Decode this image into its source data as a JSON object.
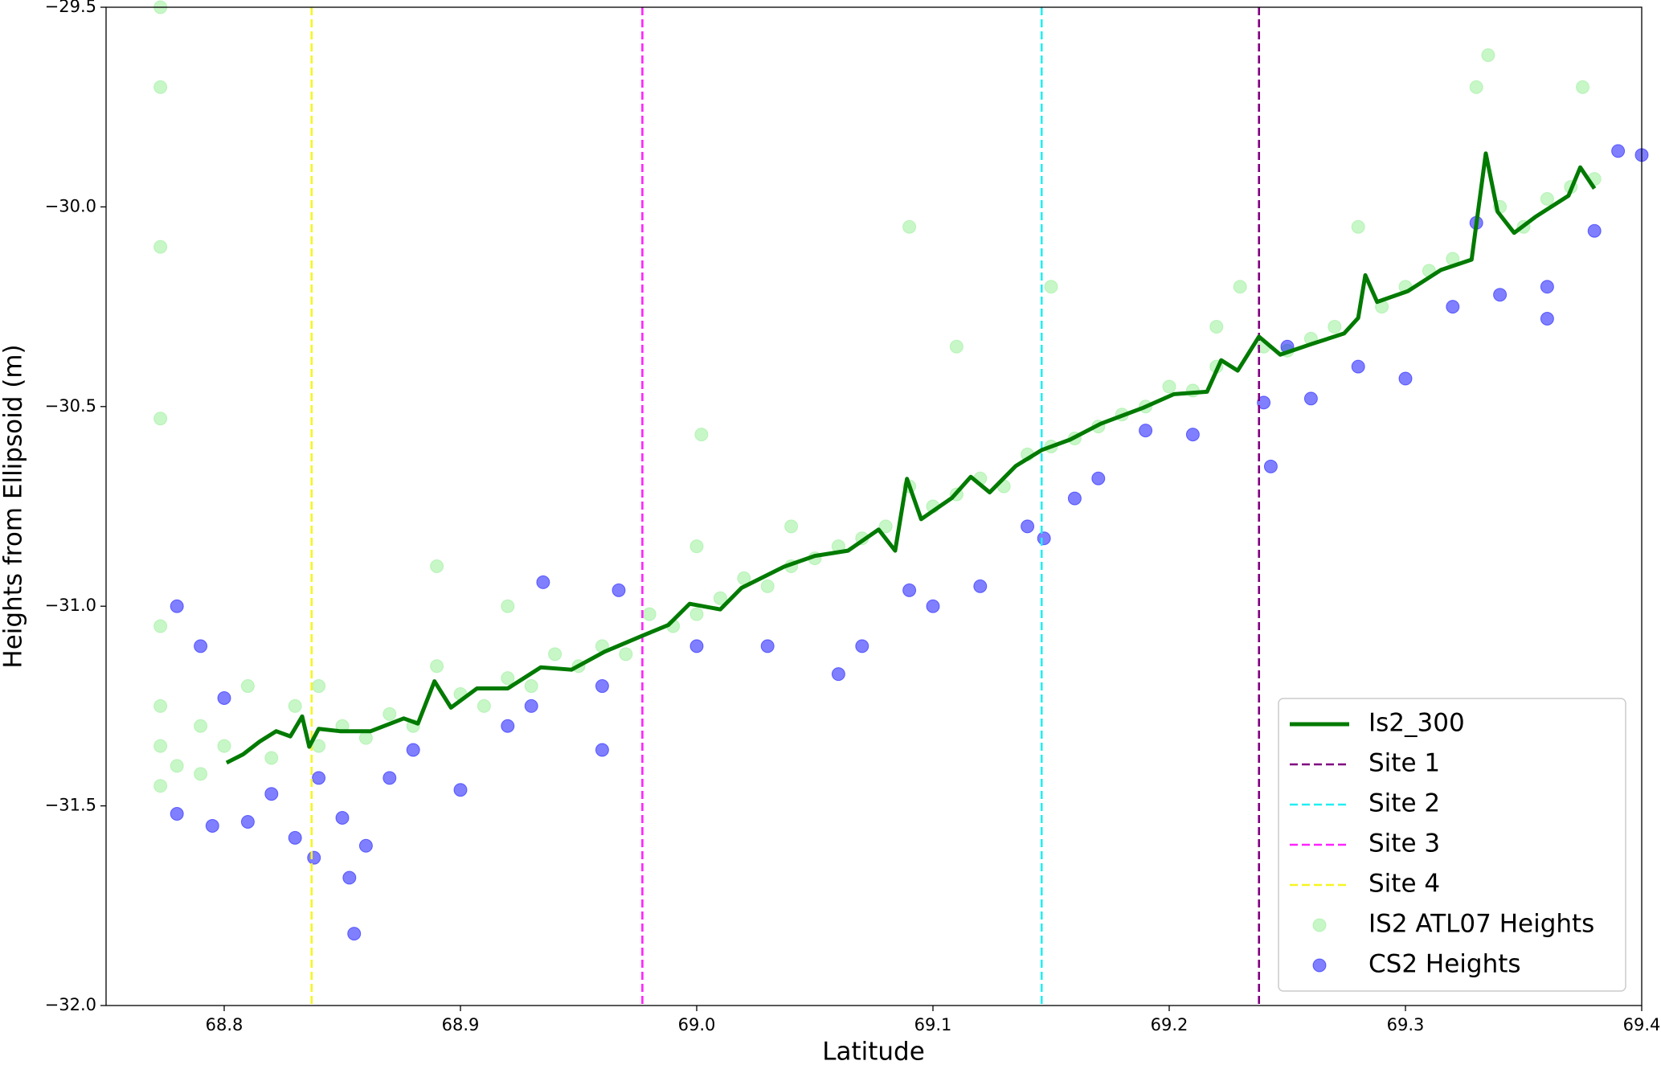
{
  "chart_data": {
    "type": "scatter",
    "xlabel": "Latitude",
    "ylabel": "Heights from Ellipsoid (m)",
    "xlim": [
      68.75,
      69.4
    ],
    "ylim": [
      -32.0,
      -29.5
    ],
    "xticks": [
      68.8,
      68.9,
      {
        "value": 69.0,
        "label": "69.0"
      },
      69.1,
      69.2,
      69.3,
      69.4
    ],
    "yticks": [
      {
        "value": -32.0,
        "label": "−32.0"
      },
      {
        "value": -31.5,
        "label": "−31.5"
      },
      {
        "value": -31.0,
        "label": "−31.0"
      },
      {
        "value": -30.5,
        "label": "−30.5"
      },
      {
        "value": -30.0,
        "label": "−30.0"
      },
      {
        "value": -29.5,
        "label": "−29.5"
      }
    ],
    "legend": "lower right",
    "series": [
      {
        "name": "Is2_300",
        "kind": "line",
        "color": "#007a00",
        "x": [
          68.801,
          68.808,
          68.815,
          68.822,
          68.828,
          68.833,
          68.836,
          68.84,
          68.849,
          68.862,
          68.876,
          68.882,
          68.889,
          68.896,
          68.907,
          68.92,
          68.934,
          68.947,
          68.961,
          68.977,
          68.988,
          68.997,
          69.01,
          69.019,
          69.037,
          69.05,
          69.064,
          69.077,
          69.084,
          69.089,
          69.095,
          69.108,
          69.116,
          69.124,
          69.135,
          69.146,
          69.158,
          69.171,
          69.189,
          69.202,
          69.216,
          69.222,
          69.229,
          69.238,
          69.247,
          69.26,
          69.274,
          69.28,
          69.283,
          69.288,
          69.301,
          69.315,
          69.328,
          69.334,
          69.339,
          69.346,
          69.355,
          69.369,
          69.374,
          69.38
        ],
        "y": [
          -31.392,
          -31.371,
          -31.339,
          -31.313,
          -31.326,
          -31.276,
          -31.352,
          -31.307,
          -31.313,
          -31.313,
          -31.281,
          -31.294,
          -31.188,
          -31.254,
          -31.206,
          -31.206,
          -31.153,
          -31.159,
          -31.114,
          -31.074,
          -31.047,
          -30.994,
          -31.008,
          -30.954,
          -30.901,
          -30.874,
          -30.861,
          -30.808,
          -30.861,
          -30.681,
          -30.782,
          -30.729,
          -30.676,
          -30.715,
          -30.649,
          -30.609,
          -30.583,
          -30.543,
          -30.503,
          -30.469,
          -30.463,
          -30.384,
          -30.41,
          -30.325,
          -30.37,
          -30.344,
          -30.317,
          -30.278,
          -30.171,
          -30.238,
          -30.211,
          -30.158,
          -30.132,
          -29.866,
          -30.012,
          -30.065,
          -30.025,
          -29.972,
          -29.901,
          -29.954
        ]
      },
      {
        "name": "Site 1",
        "kind": "vline",
        "color": "#800080",
        "x": 69.238
      },
      {
        "name": "Site 2",
        "kind": "vline",
        "color": "#22eef2",
        "x": 69.146
      },
      {
        "name": "Site 3",
        "kind": "vline",
        "color": "#ff22ff",
        "x": 68.977
      },
      {
        "name": "Site 4",
        "kind": "vline",
        "color": "#f5f522",
        "x": 68.837
      },
      {
        "name": "IS2 ATL07 Heights",
        "kind": "scatter",
        "color": "#90ee90",
        "x": [
          68.773,
          68.773,
          68.773,
          68.773,
          68.773,
          68.773,
          68.773,
          68.773,
          68.78,
          68.79,
          68.79,
          68.8,
          68.81,
          68.82,
          68.83,
          68.84,
          68.84,
          68.85,
          68.86,
          68.87,
          68.88,
          68.89,
          68.89,
          68.9,
          68.91,
          68.92,
          68.92,
          68.93,
          68.94,
          68.95,
          68.96,
          68.97,
          68.98,
          68.99,
          69.0,
          69.0,
          69.002,
          69.01,
          69.02,
          69.03,
          69.04,
          69.04,
          69.05,
          69.06,
          69.07,
          69.08,
          69.09,
          69.09,
          69.1,
          69.11,
          69.11,
          69.12,
          69.13,
          69.14,
          69.15,
          69.15,
          69.16,
          69.17,
          69.18,
          69.19,
          69.2,
          69.21,
          69.22,
          69.22,
          69.23,
          69.24,
          69.25,
          69.26,
          69.27,
          69.28,
          69.29,
          69.3,
          69.31,
          69.32,
          69.33,
          69.335,
          69.34,
          69.35,
          69.36,
          69.37,
          69.375,
          69.38
        ],
        "y": [
          -31.35,
          -31.45,
          -31.25,
          -29.7,
          -30.1,
          -30.53,
          -31.05,
          -29.5,
          -31.4,
          -31.3,
          -31.42,
          -31.35,
          -31.2,
          -31.38,
          -31.25,
          -31.2,
          -31.35,
          -31.3,
          -31.33,
          -31.27,
          -31.3,
          -31.15,
          -30.9,
          -31.22,
          -31.25,
          -31.0,
          -31.18,
          -31.2,
          -31.12,
          -31.15,
          -31.1,
          -31.12,
          -31.02,
          -31.05,
          -30.85,
          -31.02,
          -30.57,
          -30.98,
          -30.93,
          -30.95,
          -30.8,
          -30.9,
          -30.88,
          -30.85,
          -30.83,
          -30.8,
          -30.05,
          -30.7,
          -30.75,
          -30.35,
          -30.72,
          -30.68,
          -30.7,
          -30.62,
          -30.6,
          -30.2,
          -30.58,
          -30.55,
          -30.52,
          -30.5,
          -30.45,
          -30.46,
          -30.3,
          -30.4,
          -30.2,
          -30.35,
          -30.36,
          -30.33,
          -30.3,
          -30.05,
          -30.25,
          -30.2,
          -30.16,
          -30.13,
          -29.7,
          -29.62,
          -30.0,
          -30.05,
          -29.98,
          -29.95,
          -29.7,
          -29.93
        ]
      },
      {
        "name": "CS2 Heights",
        "kind": "scatter",
        "color": "#0000ff",
        "x": [
          68.78,
          68.79,
          68.78,
          68.795,
          68.8,
          68.81,
          68.82,
          68.83,
          68.838,
          68.84,
          68.85,
          68.855,
          68.853,
          68.86,
          68.87,
          68.88,
          68.9,
          68.92,
          68.93,
          68.935,
          68.96,
          68.967,
          68.96,
          69.0,
          69.03,
          69.06,
          69.07,
          69.09,
          69.1,
          69.12,
          69.14,
          69.147,
          69.16,
          69.17,
          69.19,
          69.21,
          69.24,
          69.243,
          69.26,
          69.28,
          69.3,
          69.32,
          69.34,
          69.36,
          69.38,
          69.39,
          69.4,
          69.33,
          69.25,
          69.36
        ],
        "y": [
          -31.52,
          -31.1,
          -31.0,
          -31.55,
          -31.23,
          -31.54,
          -31.47,
          -31.58,
          -31.63,
          -31.43,
          -31.53,
          -31.82,
          -31.68,
          -31.6,
          -31.43,
          -31.36,
          -31.46,
          -31.3,
          -31.25,
          -30.94,
          -31.2,
          -30.96,
          -31.36,
          -31.1,
          -31.1,
          -31.17,
          -31.1,
          -30.96,
          -31.0,
          -30.95,
          -30.8,
          -30.83,
          -30.73,
          -30.68,
          -30.56,
          -30.57,
          -30.49,
          -30.65,
          -30.48,
          -30.4,
          -30.43,
          -30.25,
          -30.22,
          -30.2,
          -30.06,
          -29.86,
          -29.87,
          -30.04,
          -30.35,
          -30.28
        ]
      }
    ]
  }
}
